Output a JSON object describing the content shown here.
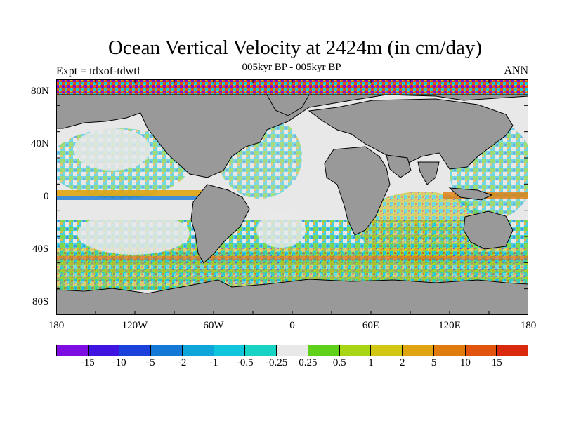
{
  "title": "Ocean Vertical Velocity at 2424m (in cm/day)",
  "subtitle": "005kyr BP - 005kyr BP",
  "experiment": "Expt = tdxof-tdwtf",
  "season": "ANN",
  "map": {
    "projection": "cylindrical-equidistant",
    "land_color": "#999999",
    "coastline_color": "#000000",
    "lat_ticks": [
      "80N",
      "40N",
      "0",
      "40S",
      "80S"
    ],
    "lon_ticks": [
      "180",
      "120W",
      "60W",
      "0",
      "60E",
      "120E",
      "180"
    ],
    "lon_range": [
      -180,
      180
    ],
    "lat_range": [
      -90,
      90
    ]
  },
  "colorbar": {
    "colors": [
      "#7d0de0",
      "#3f14e0",
      "#1a41db",
      "#1478d6",
      "#0ea6d9",
      "#10c6dd",
      "#16d3c4",
      "#e8e8e8",
      "#5fd11a",
      "#a8d614",
      "#d2c814",
      "#e0a410",
      "#e07c0d",
      "#e0540d",
      "#d92a0d"
    ],
    "labels": [
      "-15",
      "-10",
      "-5",
      "-2",
      "-1",
      "-0.5",
      "-0.25",
      "0.25",
      "0.5",
      "1",
      "2",
      "5",
      "10",
      "15"
    ]
  }
}
